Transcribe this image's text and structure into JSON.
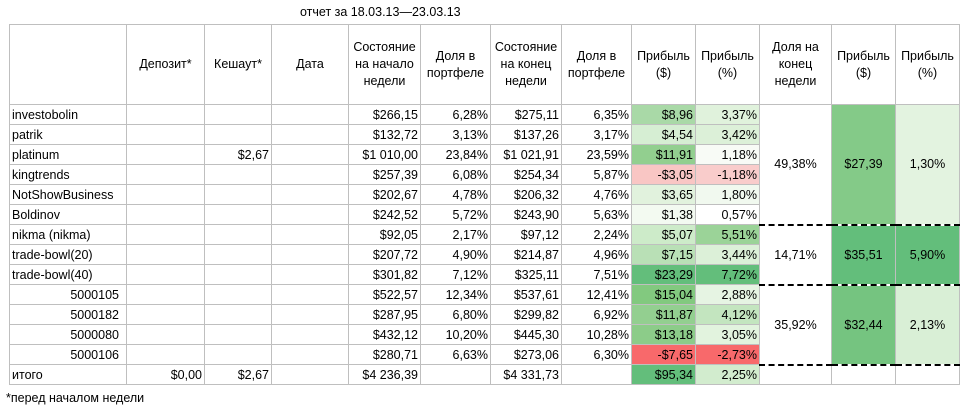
{
  "report_title": "отчет за 18.03.13—23.03.13",
  "footnote": "*перед началом недели",
  "headers": [
    "",
    "Депозит*",
    "Кешаут*",
    "Дата",
    "Состояние на начало недели",
    "Доля в портфеле",
    "Состояние на конец недели",
    "Доля в портфеле",
    "Прибыль ($)",
    "Прибыль (%)",
    "Доля на конец недели",
    "Прибыль ($)",
    "Прибыль (%)"
  ],
  "rows": [
    {
      "name": "investobolin",
      "deposit": "",
      "cashout": "",
      "date": "",
      "start": "$266,15",
      "share_start": "6,28%",
      "end": "$275,11",
      "share_end": "6,35%",
      "profit_usd": "$8,96",
      "profit_pct": "3,37%",
      "indent": false,
      "usd_color": "#a9d9a7",
      "pct_color": "#e0f2dc"
    },
    {
      "name": "patrik",
      "deposit": "",
      "cashout": "",
      "date": "",
      "start": "$132,72",
      "share_start": "3,13%",
      "end": "$137,26",
      "share_end": "3,17%",
      "profit_usd": "$4,54",
      "profit_pct": "3,42%",
      "indent": false,
      "usd_color": "#d6eed3",
      "pct_color": "#dcf0d8"
    },
    {
      "name": "platinum",
      "deposit": "",
      "cashout": "$2,67",
      "date": "",
      "start": "$1 010,00",
      "share_start": "23,84%",
      "end": "$1 021,91",
      "share_end": "23,59%",
      "profit_usd": "$11,91",
      "profit_pct": "1,18%",
      "indent": false,
      "usd_color": "#92cf8f",
      "pct_color": "#f8fbf6"
    },
    {
      "name": "kingtrends",
      "deposit": "",
      "cashout": "",
      "date": "",
      "start": "$257,39",
      "share_start": "6,08%",
      "end": "$254,34",
      "share_end": "5,87%",
      "profit_usd": "-$3,05",
      "profit_pct": "-1,18%",
      "indent": false,
      "usd_color": "#f9c6c4",
      "pct_color": "#f9cccb"
    },
    {
      "name": "NotShowBusiness",
      "deposit": "",
      "cashout": "",
      "date": "",
      "start": "$202,67",
      "share_start": "4,78%",
      "end": "$206,32",
      "share_end": "4,76%",
      "profit_usd": "$3,65",
      "profit_pct": "1,80%",
      "indent": false,
      "usd_color": "#e1f2dd",
      "pct_color": "#f1f9ef"
    },
    {
      "name": "Boldinov",
      "deposit": "",
      "cashout": "",
      "date": "",
      "start": "$242,52",
      "share_start": "5,72%",
      "end": "$243,90",
      "share_end": "5,63%",
      "profit_usd": "$1,38",
      "profit_pct": "0,57%",
      "indent": false,
      "usd_color": "#f3faf1",
      "pct_color": "#ffffff"
    },
    {
      "name": "nikma (nikma)",
      "deposit": "",
      "cashout": "",
      "date": "",
      "start": "$92,05",
      "share_start": "2,17%",
      "end": "$97,12",
      "share_end": "2,24%",
      "profit_usd": "$5,07",
      "profit_pct": "5,51%",
      "indent": false,
      "usd_color": "#cdebc9",
      "pct_color": "#9bd398"
    },
    {
      "name": "trade-bowl(20)",
      "deposit": "",
      "cashout": "",
      "date": "",
      "start": "$207,72",
      "share_start": "4,90%",
      "end": "$214,87",
      "share_end": "4,96%",
      "profit_usd": "$7,15",
      "profit_pct": "3,44%",
      "indent": false,
      "usd_color": "#b9e0b6",
      "pct_color": "#dcf0d8"
    },
    {
      "name": "trade-bowl(40)",
      "deposit": "",
      "cashout": "",
      "date": "",
      "start": "$301,82",
      "share_start": "7,12%",
      "end": "$325,11",
      "share_end": "7,51%",
      "profit_usd": "$23,29",
      "profit_pct": "7,72%",
      "indent": false,
      "usd_color": "#63be7b",
      "pct_color": "#63be7b"
    },
    {
      "name": "5000105",
      "deposit": "",
      "cashout": "",
      "date": "",
      "start": "$522,57",
      "share_start": "12,34%",
      "end": "$537,61",
      "share_end": "12,41%",
      "profit_usd": "$15,04",
      "profit_pct": "2,88%",
      "indent": true,
      "usd_color": "#82c97f",
      "pct_color": "#e6f4e3"
    },
    {
      "name": "5000182",
      "deposit": "",
      "cashout": "",
      "date": "",
      "start": "$287,95",
      "share_start": "6,80%",
      "end": "$299,82",
      "share_end": "6,92%",
      "profit_usd": "$11,87",
      "profit_pct": "4,12%",
      "indent": true,
      "usd_color": "#93cf90",
      "pct_color": "#c3e5bf"
    },
    {
      "name": "5000080",
      "deposit": "",
      "cashout": "",
      "date": "",
      "start": "$432,12",
      "share_start": "10,20%",
      "end": "$445,30",
      "share_end": "10,28%",
      "profit_usd": "$13,18",
      "profit_pct": "3,05%",
      "indent": true,
      "usd_color": "#8ccc89",
      "pct_color": "#e2f3de"
    },
    {
      "name": "5000106",
      "deposit": "",
      "cashout": "",
      "date": "",
      "start": "$280,71",
      "share_start": "6,63%",
      "end": "$273,06",
      "share_end": "6,30%",
      "profit_usd": "-$7,65",
      "profit_pct": "-2,73%",
      "indent": true,
      "usd_color": "#f8696b",
      "pct_color": "#f8696b"
    }
  ],
  "groups": [
    {
      "share": "49,38%",
      "profit_usd": "$27,39",
      "profit_pct": "1,30%",
      "usd_color": "#84ca88",
      "pct_color": "#e3f3e0"
    },
    {
      "share": "14,71%",
      "profit_usd": "$35,51",
      "profit_pct": "5,90%",
      "usd_color": "#63be7b",
      "pct_color": "#63be7b"
    },
    {
      "share": "35,92%",
      "profit_usd": "$32,44",
      "profit_pct": "2,13%",
      "usd_color": "#75c480",
      "pct_color": "#d9efd6"
    }
  ],
  "total": {
    "name": "итого",
    "deposit": "$0,00",
    "cashout": "$2,67",
    "start": "$4 236,39",
    "end": "$4 331,73",
    "profit_usd": "$95,34",
    "profit_pct": "2,25%",
    "usd_color": "#63be7b",
    "pct_color": "#d2ecce"
  }
}
